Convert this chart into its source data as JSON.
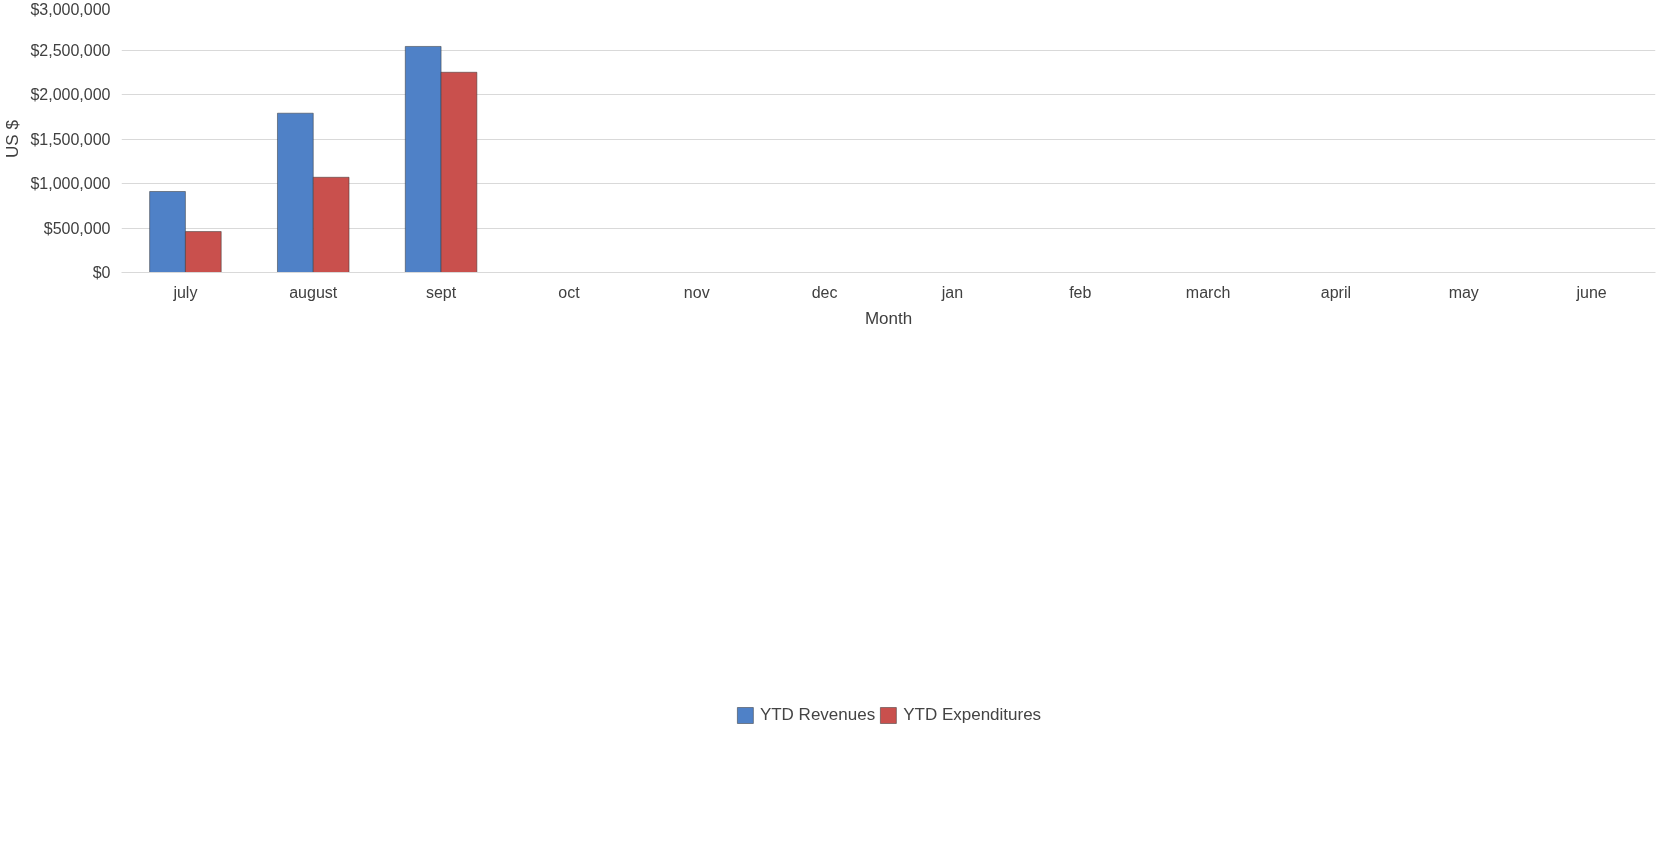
{
  "chart_data": {
    "type": "bar",
    "xlabel": "Month",
    "ylabel": "US $",
    "categories": [
      "july",
      "august",
      "sept",
      "oct",
      "nov",
      "dec",
      "jan",
      "feb",
      "march",
      "april",
      "may",
      "june"
    ],
    "series": [
      {
        "name": "YTD Revenues",
        "color": "#4f81c7",
        "values": [
          910000,
          1790000,
          2540000,
          null,
          null,
          null,
          null,
          null,
          null,
          null,
          null,
          null
        ]
      },
      {
        "name": "YTD Expenditures",
        "color": "#c9504d",
        "values": [
          460000,
          1070000,
          2250000,
          null,
          null,
          null,
          null,
          null,
          null,
          null,
          null,
          null
        ]
      }
    ],
    "ylim": [
      0,
      3000000
    ],
    "yticks": [
      {
        "value": 0,
        "label": "$0"
      },
      {
        "value": 500000,
        "label": "$500,000"
      },
      {
        "value": 1000000,
        "label": "$1,000,000"
      },
      {
        "value": 1500000,
        "label": "$1,500,000"
      },
      {
        "value": 2000000,
        "label": "$2,000,000"
      },
      {
        "value": 2500000,
        "label": "$2,500,000"
      },
      {
        "value": 3000000,
        "label": "$3,000,000"
      }
    ],
    "grid": "y",
    "legend": "bottom"
  }
}
